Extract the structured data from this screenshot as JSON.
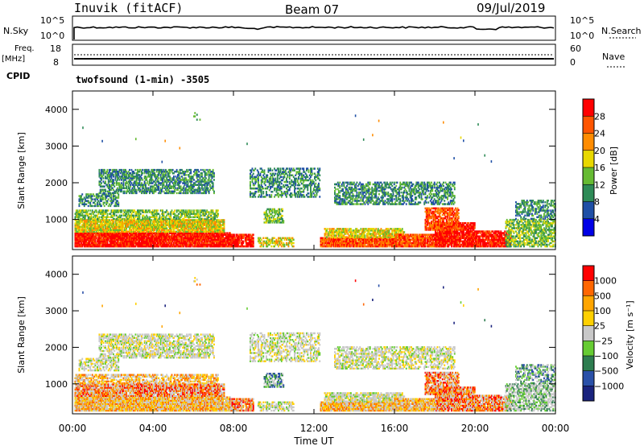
{
  "header": {
    "station": "Inuvik (fitACF)",
    "beam": "Beam 07",
    "date": "09/Jul/2019"
  },
  "top_panels": {
    "nsky_label": "N.Sky",
    "nsky_ticks": [
      "10^5",
      "10^0"
    ],
    "nsearch_label": "N.Search",
    "nsearch_ticks": [
      "10^5",
      "10^0"
    ],
    "freq_label": "Freq.",
    "freq_unit": "[MHz]",
    "freq_ticks": [
      "18",
      "8"
    ],
    "nave_label": "Nave",
    "nave_ticks": [
      "60",
      "0"
    ],
    "cpid_label": "CPID",
    "cpid_value": "twofsound (1-min) -3505"
  },
  "chart_data": [
    {
      "type": "heatmap",
      "name": "power",
      "ylabel": "Slant Range [km]",
      "yticks": [
        "1000",
        "2000",
        "3000",
        "4000"
      ],
      "ylim": [
        180,
        4500
      ],
      "xlim": [
        0,
        24
      ],
      "colorbar": {
        "label": "Power [dB]",
        "ticks": [
          "28",
          "24",
          "20",
          "16",
          "12",
          "8",
          "4"
        ],
        "colors": [
          "#0000e6",
          "#1f4fa6",
          "#2e8b57",
          "#66bb33",
          "#e8d800",
          "#ff8c00",
          "#ff5500",
          "#ff0000"
        ]
      }
    },
    {
      "type": "heatmap",
      "name": "velocity",
      "ylabel": "Slant Range [km]",
      "yticks": [
        "1000",
        "2000",
        "3000",
        "4000"
      ],
      "ylim": [
        180,
        4500
      ],
      "xlim": [
        0,
        24
      ],
      "colorbar": {
        "label": "Velocity [m s⁻¹]",
        "ticks": [
          "1000",
          "500",
          "100",
          "25",
          "−25",
          "−100",
          "−500",
          "−1000"
        ],
        "colors": [
          "#1a237e",
          "#2a50a8",
          "#2e7d50",
          "#66cc33",
          "#c8c8c8",
          "#ffd000",
          "#ffa500",
          "#ff6600",
          "#ff0000"
        ]
      }
    }
  ],
  "x_axis": {
    "label": "Time UT",
    "ticks": [
      "00:00",
      "04:00",
      "08:00",
      "12:00",
      "16:00",
      "20:00",
      "00:00"
    ]
  }
}
